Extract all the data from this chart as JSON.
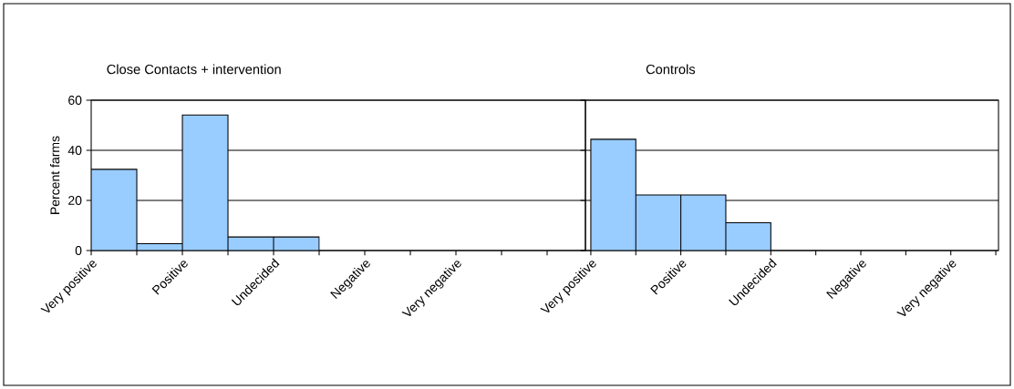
{
  "chart_data": [
    {
      "type": "bar",
      "title": "Close Contacts + intervention",
      "ylabel": "Percent farms",
      "categories": [
        "Very positive",
        null,
        "Positive",
        null,
        "Undecided",
        null,
        "Negative",
        null,
        "Very negative",
        null
      ],
      "values": [
        32.4,
        2.7,
        54.1,
        5.4,
        5.4,
        null,
        null,
        null,
        null,
        null
      ],
      "color": "#99ccff",
      "ylim": [
        0,
        60
      ],
      "yticks": [
        0,
        20,
        40,
        60
      ],
      "grid": "y"
    },
    {
      "type": "bar",
      "title": "Controls",
      "categories": [
        "Very positive",
        null,
        "Positive",
        null,
        "Undecided",
        null,
        "Negative",
        null,
        "Very negative"
      ],
      "values": [
        44.4,
        22.2,
        22.2,
        11.1,
        null,
        null,
        null,
        null,
        null
      ],
      "color": "#99ccff",
      "ylim": [
        0,
        60
      ],
      "yticks": [
        0,
        20,
        40,
        60
      ],
      "grid": "y",
      "tick_labels": "x"
    }
  ]
}
